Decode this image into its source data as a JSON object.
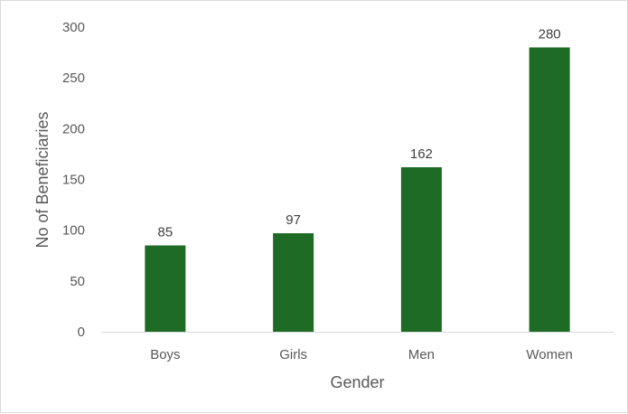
{
  "chart_data": {
    "type": "bar",
    "title": "",
    "xlabel": "Gender",
    "ylabel": "No of Beneficiaries",
    "categories": [
      "Boys",
      "Girls",
      "Men",
      "Women"
    ],
    "values": [
      85,
      97,
      162,
      280
    ],
    "ylim": [
      0,
      300
    ],
    "yticks": [
      0,
      50,
      100,
      150,
      200,
      250,
      300
    ],
    "data_labels": true,
    "grid": false,
    "legend": "none",
    "bar_color": "#1e6b25",
    "axis_color": "#d9d9d9",
    "text_color": "#595959"
  }
}
